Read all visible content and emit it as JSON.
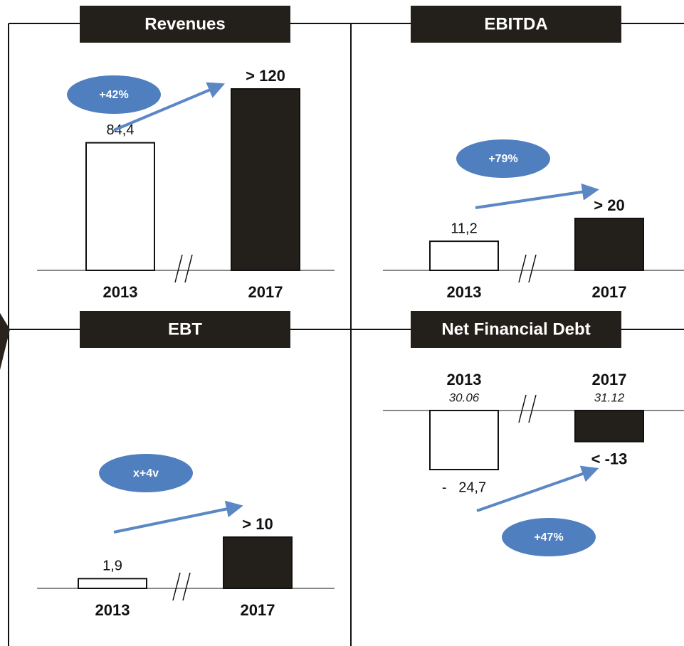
{
  "chart_data": [
    {
      "type": "bar",
      "title": "Revenues",
      "categories": [
        "2013",
        "2017"
      ],
      "values": [
        84.4,
        120
      ],
      "value_labels": [
        "84,4",
        "> 120"
      ],
      "annotation": "+42%"
    },
    {
      "type": "bar",
      "title": "EBITDA",
      "categories": [
        "2013",
        "2017"
      ],
      "values": [
        11.2,
        20
      ],
      "value_labels": [
        "11,2",
        "> 20"
      ],
      "annotation": "+79%"
    },
    {
      "type": "bar",
      "title": "EBT",
      "categories": [
        "2013",
        "2017"
      ],
      "values": [
        1.9,
        10
      ],
      "value_labels": [
        "1,9",
        "> 10"
      ],
      "annotation": "x+4v"
    },
    {
      "type": "bar",
      "title": "Net Financial Debt",
      "categories": [
        "2013",
        "2017"
      ],
      "category_notes": [
        "30.06",
        "31.12"
      ],
      "values": [
        -24.7,
        -13
      ],
      "value_labels": [
        "-   24,7",
        "< -13"
      ],
      "annotation": "+47%"
    }
  ]
}
